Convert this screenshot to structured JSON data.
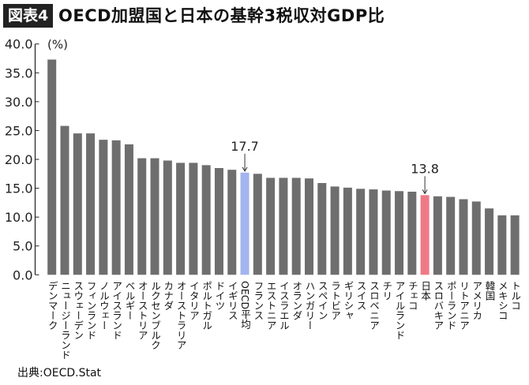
{
  "header": {
    "badge": "図表4",
    "title": "OECD加盟国と日本の基幹3税収対GDP比"
  },
  "source": "出典:OECD.Stat",
  "chart_data": {
    "type": "bar",
    "title": "OECD加盟国と日本の基幹3税収対GDP比",
    "ylabel": "(%)",
    "xlabel": "",
    "ylim": [
      0,
      40
    ],
    "yticks": [
      "0.0",
      "5.0",
      "10.0",
      "15.0",
      "20.0",
      "25.0",
      "30.0",
      "35.0",
      "40.0"
    ],
    "grid": false,
    "categories": [
      "デンマーク",
      "ニュージーランド",
      "スウェーデン",
      "フィンランド",
      "ノルウェー",
      "アイスランド",
      "ベルギー",
      "オーストリア",
      "ルクセンブルク",
      "カナダ",
      "オーストラリア",
      "イタリア",
      "ポルトガル",
      "ドイツ",
      "イギリス",
      "OECD平均",
      "フランス",
      "エストニア",
      "イスラエル",
      "オランダ",
      "ハンガリー",
      "スペイン",
      "ラトビア",
      "ギリシャ",
      "スイス",
      "スロベニア",
      "チリ",
      "アイルランド",
      "チェコ",
      "日本",
      "スロバキア",
      "ポーランド",
      "リトアニア",
      "アメリカ",
      "韓国",
      "メキシコ",
      "トルコ"
    ],
    "values": [
      37.3,
      25.8,
      24.5,
      24.5,
      23.4,
      23.3,
      22.6,
      20.2,
      20.2,
      19.8,
      19.4,
      19.4,
      19.0,
      18.5,
      18.2,
      17.7,
      17.5,
      16.8,
      16.8,
      16.8,
      16.7,
      15.9,
      15.3,
      15.1,
      14.9,
      14.8,
      14.6,
      14.5,
      14.4,
      13.8,
      13.6,
      13.5,
      13.1,
      12.7,
      11.5,
      10.3,
      10.3
    ],
    "annotations": [
      {
        "category": "OECD平均",
        "label": "17.7"
      },
      {
        "category": "日本",
        "label": "13.8"
      }
    ],
    "colors": {
      "default": "#6e6e6e",
      "OECD平均": "#a3b4ee",
      "日本": "#ee7a85"
    }
  }
}
